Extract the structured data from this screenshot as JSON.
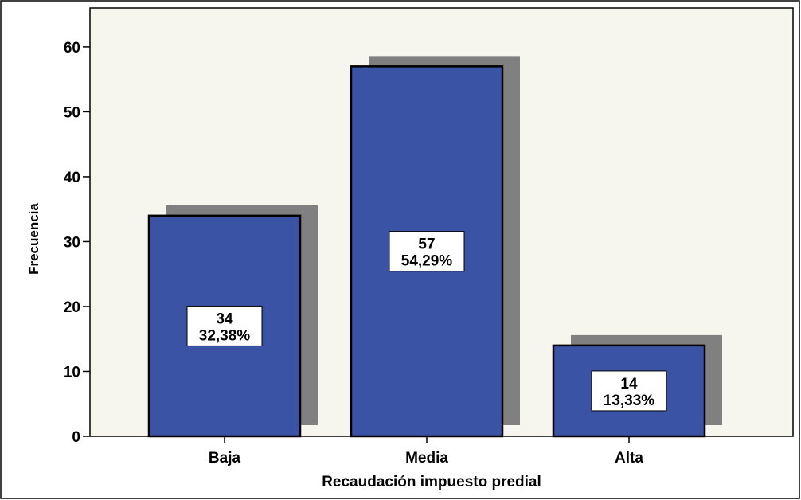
{
  "chart_data": {
    "type": "bar",
    "xlabel": "Recaudación impuesto predial",
    "ylabel": "Frecuencia",
    "categories": [
      "Baja",
      "Media",
      "Alta"
    ],
    "values": [
      34,
      57,
      14
    ],
    "labels": [
      {
        "count": "34",
        "percent": "32,38%"
      },
      {
        "count": "57",
        "percent": "54,29%"
      },
      {
        "count": "14",
        "percent": "13,33%"
      }
    ],
    "ylim": [
      0,
      66
    ],
    "yticks": [
      0,
      10,
      20,
      30,
      40,
      50,
      60
    ],
    "grid": false,
    "legend": "none",
    "bar_color": "#3a53a4",
    "shadow_color": "#808080",
    "plot_background": "#f6f6ef"
  }
}
